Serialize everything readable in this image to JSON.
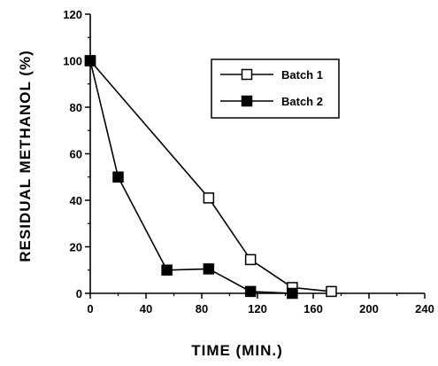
{
  "chart_data": {
    "type": "line",
    "title": "",
    "xlabel": "TIME  (MIN.)",
    "ylabel": "RESIDUAL  METHANOL  (%)",
    "xlim": [
      0,
      240
    ],
    "ylim": [
      0,
      120
    ],
    "x_ticks": [
      0,
      40,
      80,
      120,
      160,
      200,
      240
    ],
    "y_ticks": [
      0,
      20,
      40,
      60,
      80,
      100,
      120
    ],
    "grid": false,
    "legend_position": "top-right",
    "series": [
      {
        "name": "Batch 1",
        "marker": "open-square",
        "color": "#000000",
        "x": [
          0,
          85,
          115,
          145,
          173
        ],
        "y": [
          100,
          41,
          14.5,
          2.5,
          0.8
        ]
      },
      {
        "name": "Batch 2",
        "marker": "filled-square",
        "color": "#000000",
        "x": [
          0,
          20,
          55,
          85,
          115,
          145
        ],
        "y": [
          100,
          50,
          10,
          10.5,
          0.8,
          0
        ]
      }
    ]
  }
}
